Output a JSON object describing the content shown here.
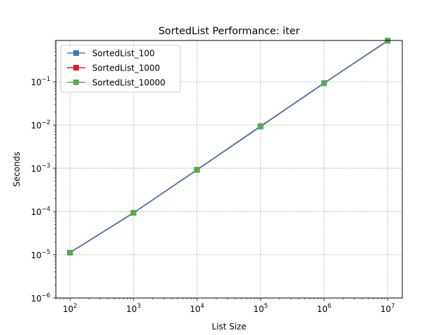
{
  "chart_data": {
    "type": "line",
    "title": "SortedList Performance: iter",
    "xlabel": "List Size",
    "ylabel": "Seconds",
    "xscale": "log",
    "yscale": "log",
    "xlim": [
      60,
      17000000
    ],
    "ylim": [
      1e-06,
      0.9
    ],
    "grid": true,
    "legend_position": "upper left",
    "x": [
      100,
      1000,
      10000,
      100000,
      1000000,
      10000000
    ],
    "x_tick_labels": [
      {
        "base": "10",
        "exp": "2"
      },
      {
        "base": "10",
        "exp": "3"
      },
      {
        "base": "10",
        "exp": "4"
      },
      {
        "base": "10",
        "exp": "5"
      },
      {
        "base": "10",
        "exp": "6"
      },
      {
        "base": "10",
        "exp": "7"
      }
    ],
    "y_tick_labels": [
      {
        "base": "10",
        "exp": "−6"
      },
      {
        "base": "10",
        "exp": "−5"
      },
      {
        "base": "10",
        "exp": "−4"
      },
      {
        "base": "10",
        "exp": "−3"
      },
      {
        "base": "10",
        "exp": "−2"
      },
      {
        "base": "10",
        "exp": "−1"
      }
    ],
    "series": [
      {
        "name": "SortedList_100",
        "color": "#377eb8",
        "marker": "square",
        "values": [
          1.12e-05,
          9.35e-05,
          0.00092,
          0.0092,
          0.093,
          0.89
        ]
      },
      {
        "name": "SortedList_1000",
        "color": "#e41a1c",
        "marker": "square",
        "values": [
          1.12e-05,
          9.3e-05,
          0.00092,
          0.0094,
          0.093,
          0.89
        ]
      },
      {
        "name": "SortedList_10000",
        "color": "#4daf4a",
        "marker": "square",
        "values": [
          1.12e-05,
          9.3e-05,
          0.00092,
          0.0093,
          0.093,
          0.89
        ]
      }
    ],
    "overlay_line_color": "#4878a8"
  }
}
